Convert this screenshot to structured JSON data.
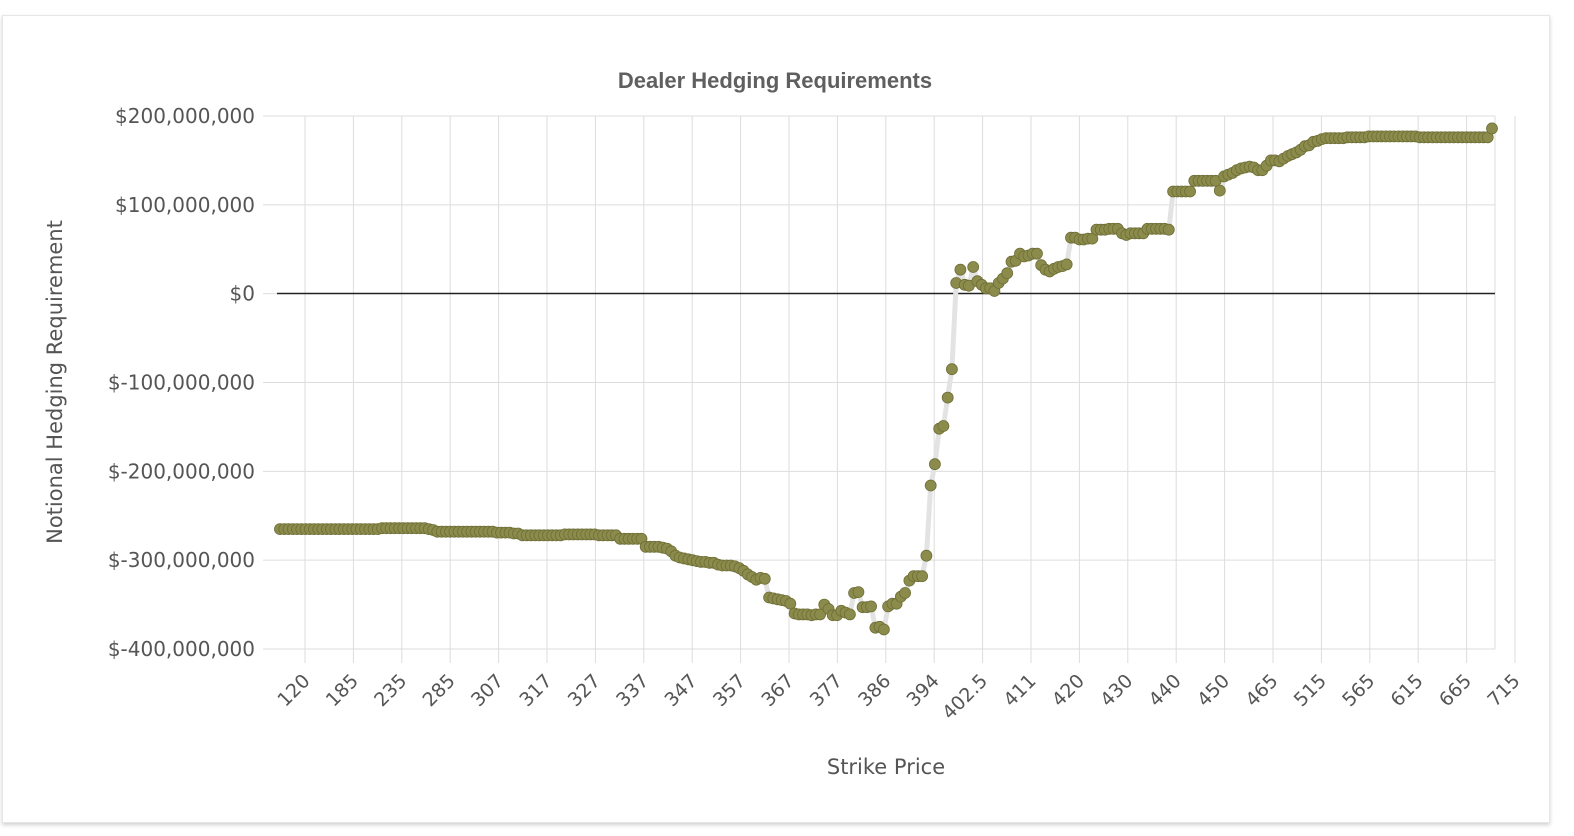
{
  "chart_data": {
    "type": "scatter",
    "title": "Dealer Hedging Requirements",
    "xlabel": "Strike Price",
    "ylabel": "Notional Hedging Requirement",
    "x_tick_labels": [
      "120",
      "185",
      "235",
      "285",
      "307",
      "317",
      "327",
      "337",
      "347",
      "357",
      "367",
      "377",
      "386",
      "394",
      "402.5",
      "411",
      "420",
      "430",
      "440",
      "450",
      "465",
      "515",
      "565",
      "615",
      "665",
      "715"
    ],
    "y_tick_labels": [
      "$200,000,000",
      "$100,000,000",
      "$0",
      "$-100,000,000",
      "$-200,000,000",
      "$-300,000,000",
      "$-400,000,000"
    ],
    "y_tick_values": [
      200000000,
      100000000,
      0,
      -100000000,
      -200000000,
      -300000000,
      -400000000
    ],
    "ylim": [
      -400000000,
      200000000
    ],
    "grid": true,
    "marker_color": "#8b8b4b",
    "line_color": "#e3e3e3",
    "zero_line_color": "#222222",
    "series": [
      {
        "values": [
          -265,
          -265,
          -265,
          -265,
          -265,
          -265,
          -265,
          -265,
          -265,
          -265,
          -265,
          -265,
          -265,
          -265,
          -265,
          -265,
          -265,
          -265,
          -265,
          -265,
          -265,
          -265,
          -265,
          -265,
          -264,
          -264,
          -264,
          -264,
          -264,
          -264,
          -264,
          -264,
          -264,
          -264,
          -264,
          -265,
          -266,
          -268,
          -268,
          -268,
          -268,
          -268,
          -268,
          -268,
          -268,
          -268,
          -268,
          -268,
          -268,
          -268,
          -268,
          -269,
          -269,
          -269,
          -269,
          -270,
          -270,
          -272,
          -272,
          -272,
          -272,
          -272,
          -272,
          -272,
          -272,
          -272,
          -272,
          -271,
          -271,
          -271,
          -271,
          -271,
          -271,
          -271,
          -271,
          -272,
          -272,
          -272,
          -272,
          -272,
          -276,
          -276,
          -276,
          -276,
          -276,
          -276,
          -285,
          -285,
          -285,
          -285,
          -286,
          -287,
          -290,
          -295,
          -297,
          -298,
          -299,
          -300,
          -301,
          -302,
          -302,
          -303,
          -303,
          -305,
          -306,
          -306,
          -306,
          -307,
          -309,
          -312,
          -316,
          -319,
          -322,
          -320,
          -321,
          -342,
          -343,
          -344,
          -345,
          -346,
          -349,
          -360,
          -361,
          -361,
          -361,
          -362,
          -361,
          -361,
          -350,
          -355,
          -362,
          -362,
          -357,
          -359,
          -361,
          -337,
          -336,
          -353,
          -353,
          -352,
          -376,
          -375,
          -378,
          -352,
          -349,
          -349,
          -341,
          -337,
          -323,
          -318,
          -318,
          -318,
          -295,
          -216,
          -192,
          -152,
          -149,
          -117,
          -85,
          12,
          27,
          10,
          9,
          30,
          14,
          10,
          6,
          6,
          3,
          12,
          17,
          23,
          36,
          37,
          45,
          42,
          43,
          45,
          45,
          32,
          27,
          25,
          28,
          30,
          31,
          33,
          63,
          63,
          61,
          61,
          62,
          62,
          72,
          72,
          72,
          73,
          73,
          73,
          68,
          66,
          68,
          68,
          68,
          68,
          73,
          73,
          73,
          73,
          73,
          72,
          115,
          115,
          115,
          115,
          115,
          127,
          127,
          127,
          127,
          127,
          127,
          116,
          132,
          134,
          136,
          139,
          141,
          142,
          143,
          142,
          139,
          139,
          144,
          150,
          150,
          149,
          152,
          155,
          157,
          159,
          162,
          166,
          167,
          171,
          172,
          174,
          175,
          175,
          175,
          175,
          175,
          176,
          176,
          176,
          176,
          176,
          177,
          177,
          177,
          177,
          177,
          177,
          177,
          177,
          177,
          177,
          177,
          177,
          176,
          176,
          176,
          176,
          176,
          176,
          176,
          176,
          176,
          176,
          176,
          176,
          176,
          176,
          176,
          176,
          176,
          186
        ]
      }
    ]
  }
}
